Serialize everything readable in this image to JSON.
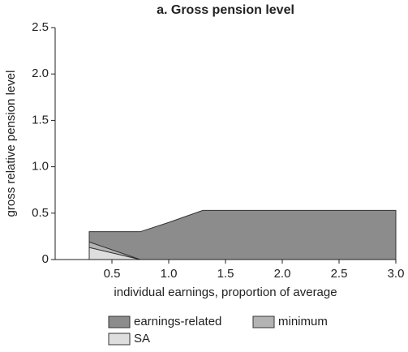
{
  "chart_data": {
    "type": "area",
    "stacked": true,
    "title": "a. Gross pension level",
    "xlabel": "individual earnings, proportion of average",
    "ylabel": "gross relative pension level",
    "x": [
      0.3,
      0.75,
      1.0,
      1.3,
      3.0
    ],
    "series": [
      {
        "name": "earnings-related",
        "color": "#8c8c8c",
        "values": [
          0.11,
          0.3,
          0.4,
          0.53,
          0.53
        ]
      },
      {
        "name": "minimum",
        "color": "#b3b3b3",
        "values": [
          0.06,
          0,
          0,
          0,
          0
        ]
      },
      {
        "name": "SA",
        "color": "#dedede",
        "values": [
          0.13,
          0,
          0,
          0,
          0
        ]
      }
    ],
    "xlim": [
      0,
      3
    ],
    "xticks": [
      0.5,
      {
        "value": 1,
        "label": "1.0"
      },
      1.5,
      {
        "value": 2,
        "label": "2.0"
      },
      2.5,
      {
        "value": 3,
        "label": "3.0"
      }
    ],
    "ylim": [
      0,
      2.5
    ],
    "yticks": [
      0,
      0.5,
      {
        "value": 1,
        "label": "1.0"
      },
      1.5,
      {
        "value": 2,
        "label": "2.0"
      },
      2.5
    ],
    "grid": false
  }
}
